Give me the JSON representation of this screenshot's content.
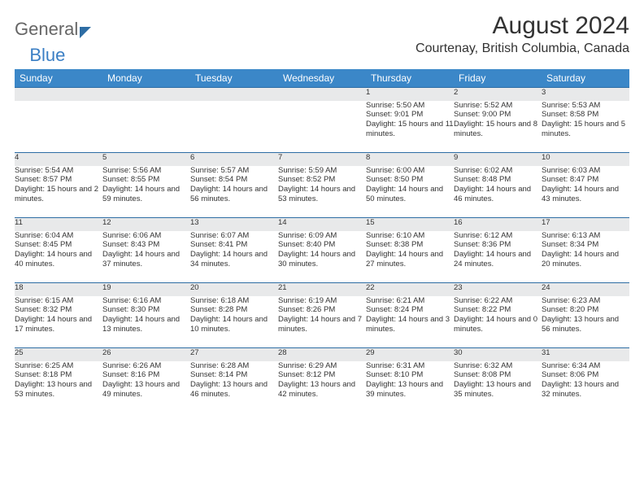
{
  "logo": {
    "text1": "General",
    "text2": "Blue"
  },
  "header": {
    "month_title": "August 2024",
    "location": "Courtenay, British Columbia, Canada"
  },
  "colors": {
    "header_bg": "#3b87c8",
    "header_text": "#ffffff",
    "daynum_bg": "#e8e9ea",
    "row_border": "#2e6da4",
    "text": "#333333",
    "page_bg": "#ffffff"
  },
  "day_names": [
    "Sunday",
    "Monday",
    "Tuesday",
    "Wednesday",
    "Thursday",
    "Friday",
    "Saturday"
  ],
  "weeks": [
    {
      "nums": [
        "",
        "",
        "",
        "",
        "1",
        "2",
        "3"
      ],
      "cells": [
        null,
        null,
        null,
        null,
        {
          "sunrise": "5:50 AM",
          "sunset": "9:01 PM",
          "daylight": "15 hours and 11 minutes."
        },
        {
          "sunrise": "5:52 AM",
          "sunset": "9:00 PM",
          "daylight": "15 hours and 8 minutes."
        },
        {
          "sunrise": "5:53 AM",
          "sunset": "8:58 PM",
          "daylight": "15 hours and 5 minutes."
        }
      ]
    },
    {
      "nums": [
        "4",
        "5",
        "6",
        "7",
        "8",
        "9",
        "10"
      ],
      "cells": [
        {
          "sunrise": "5:54 AM",
          "sunset": "8:57 PM",
          "daylight": "15 hours and 2 minutes."
        },
        {
          "sunrise": "5:56 AM",
          "sunset": "8:55 PM",
          "daylight": "14 hours and 59 minutes."
        },
        {
          "sunrise": "5:57 AM",
          "sunset": "8:54 PM",
          "daylight": "14 hours and 56 minutes."
        },
        {
          "sunrise": "5:59 AM",
          "sunset": "8:52 PM",
          "daylight": "14 hours and 53 minutes."
        },
        {
          "sunrise": "6:00 AM",
          "sunset": "8:50 PM",
          "daylight": "14 hours and 50 minutes."
        },
        {
          "sunrise": "6:02 AM",
          "sunset": "8:48 PM",
          "daylight": "14 hours and 46 minutes."
        },
        {
          "sunrise": "6:03 AM",
          "sunset": "8:47 PM",
          "daylight": "14 hours and 43 minutes."
        }
      ]
    },
    {
      "nums": [
        "11",
        "12",
        "13",
        "14",
        "15",
        "16",
        "17"
      ],
      "cells": [
        {
          "sunrise": "6:04 AM",
          "sunset": "8:45 PM",
          "daylight": "14 hours and 40 minutes."
        },
        {
          "sunrise": "6:06 AM",
          "sunset": "8:43 PM",
          "daylight": "14 hours and 37 minutes."
        },
        {
          "sunrise": "6:07 AM",
          "sunset": "8:41 PM",
          "daylight": "14 hours and 34 minutes."
        },
        {
          "sunrise": "6:09 AM",
          "sunset": "8:40 PM",
          "daylight": "14 hours and 30 minutes."
        },
        {
          "sunrise": "6:10 AM",
          "sunset": "8:38 PM",
          "daylight": "14 hours and 27 minutes."
        },
        {
          "sunrise": "6:12 AM",
          "sunset": "8:36 PM",
          "daylight": "14 hours and 24 minutes."
        },
        {
          "sunrise": "6:13 AM",
          "sunset": "8:34 PM",
          "daylight": "14 hours and 20 minutes."
        }
      ]
    },
    {
      "nums": [
        "18",
        "19",
        "20",
        "21",
        "22",
        "23",
        "24"
      ],
      "cells": [
        {
          "sunrise": "6:15 AM",
          "sunset": "8:32 PM",
          "daylight": "14 hours and 17 minutes."
        },
        {
          "sunrise": "6:16 AM",
          "sunset": "8:30 PM",
          "daylight": "14 hours and 13 minutes."
        },
        {
          "sunrise": "6:18 AM",
          "sunset": "8:28 PM",
          "daylight": "14 hours and 10 minutes."
        },
        {
          "sunrise": "6:19 AM",
          "sunset": "8:26 PM",
          "daylight": "14 hours and 7 minutes."
        },
        {
          "sunrise": "6:21 AM",
          "sunset": "8:24 PM",
          "daylight": "14 hours and 3 minutes."
        },
        {
          "sunrise": "6:22 AM",
          "sunset": "8:22 PM",
          "daylight": "14 hours and 0 minutes."
        },
        {
          "sunrise": "6:23 AM",
          "sunset": "8:20 PM",
          "daylight": "13 hours and 56 minutes."
        }
      ]
    },
    {
      "nums": [
        "25",
        "26",
        "27",
        "28",
        "29",
        "30",
        "31"
      ],
      "cells": [
        {
          "sunrise": "6:25 AM",
          "sunset": "8:18 PM",
          "daylight": "13 hours and 53 minutes."
        },
        {
          "sunrise": "6:26 AM",
          "sunset": "8:16 PM",
          "daylight": "13 hours and 49 minutes."
        },
        {
          "sunrise": "6:28 AM",
          "sunset": "8:14 PM",
          "daylight": "13 hours and 46 minutes."
        },
        {
          "sunrise": "6:29 AM",
          "sunset": "8:12 PM",
          "daylight": "13 hours and 42 minutes."
        },
        {
          "sunrise": "6:31 AM",
          "sunset": "8:10 PM",
          "daylight": "13 hours and 39 minutes."
        },
        {
          "sunrise": "6:32 AM",
          "sunset": "8:08 PM",
          "daylight": "13 hours and 35 minutes."
        },
        {
          "sunrise": "6:34 AM",
          "sunset": "8:06 PM",
          "daylight": "13 hours and 32 minutes."
        }
      ]
    }
  ],
  "labels": {
    "sunrise_prefix": "Sunrise: ",
    "sunset_prefix": "Sunset: ",
    "daylight_prefix": "Daylight: "
  }
}
